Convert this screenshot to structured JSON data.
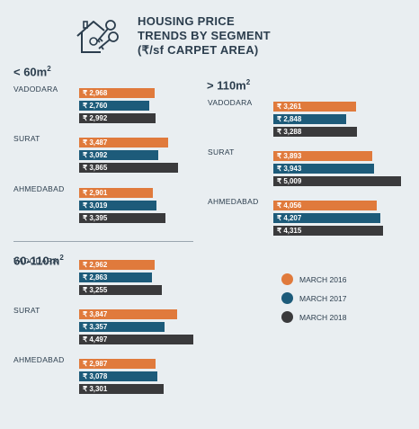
{
  "title": {
    "line1": "HOUSING PRICE",
    "line2": "TRENDS BY SEGMENT",
    "line3": "(₹/sf CARPET AREA)"
  },
  "logo_icon": "house-with-keys-icon",
  "colors": {
    "march_2016": "#e07a3c",
    "march_2017": "#1d5b7a",
    "march_2018": "#3a3a3c",
    "text": "#2b3d4d",
    "background": "#e9eef1"
  },
  "chart_data": {
    "type": "bar",
    "orientation": "horizontal",
    "series_names": [
      "MARCH 2016",
      "MARCH 2017",
      "MARCH 2018"
    ],
    "segments": [
      {
        "label": "< 60m",
        "sup": "2",
        "cities": [
          {
            "name": "VADODARA",
            "values": [
              2968,
              2760,
              2992
            ],
            "labels": [
              "₹ 2,968",
              "₹ 2,760",
              "₹ 2,992"
            ]
          },
          {
            "name": "SURAT",
            "values": [
              3487,
              3092,
              3865
            ],
            "labels": [
              "₹ 3,487",
              "₹ 3,092",
              "₹ 3,865"
            ]
          },
          {
            "name": "AHMEDABAD",
            "values": [
              2901,
              3019,
              3395
            ],
            "labels": [
              "₹ 2,901",
              "₹ 3,019",
              "₹ 3,395"
            ]
          }
        ]
      },
      {
        "label": "60-110m",
        "sup": "2",
        "cities": [
          {
            "name": "VADODARA",
            "values": [
              2962,
              2863,
              3255
            ],
            "labels": [
              "₹ 2,962",
              "₹ 2,863",
              "₹ 3,255"
            ]
          },
          {
            "name": "SURAT",
            "values": [
              3847,
              3357,
              4497
            ],
            "labels": [
              "₹ 3,847",
              "₹ 3,357",
              "₹ 4,497"
            ]
          },
          {
            "name": "AHMEDABAD",
            "values": [
              2987,
              3078,
              3301
            ],
            "labels": [
              "₹ 2,987",
              "₹ 3,078",
              "₹ 3,301"
            ]
          }
        ]
      },
      {
        "label": "> 110m",
        "sup": "2",
        "cities": [
          {
            "name": "VADODARA",
            "values": [
              3261,
              2848,
              3288
            ],
            "labels": [
              "₹ 3,261",
              "₹ 2,848",
              "₹ 3,288"
            ]
          },
          {
            "name": "SURAT",
            "values": [
              3893,
              3943,
              5009
            ],
            "labels": [
              "₹ 3,893",
              "₹ 3,943",
              "₹ 5,009"
            ]
          },
          {
            "name": "AHMEDABAD",
            "values": [
              4056,
              4207,
              4315
            ],
            "labels": [
              "₹ 4,056",
              "₹ 4,207",
              "₹ 4,315"
            ]
          }
        ]
      }
    ]
  },
  "legend": [
    {
      "label": "MARCH 2016",
      "color": "#e07a3c"
    },
    {
      "label": "MARCH 2017",
      "color": "#1d5b7a"
    },
    {
      "label": "MARCH 2018",
      "color": "#3a3a3c"
    }
  ]
}
